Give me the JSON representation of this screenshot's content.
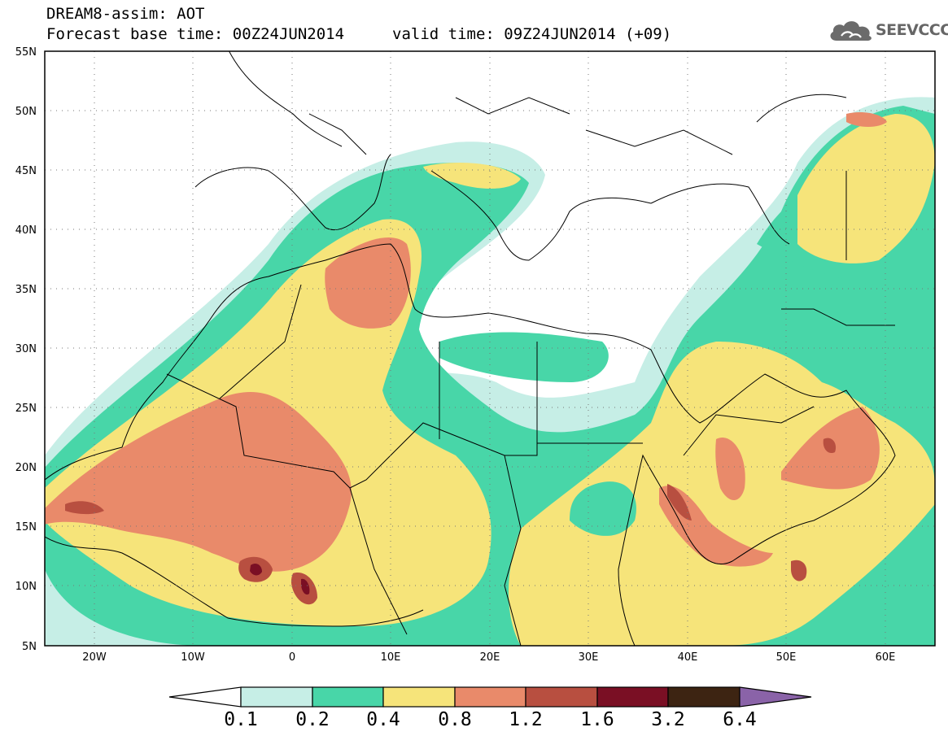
{
  "header": {
    "line1": "DREAM8-assim: AOT",
    "line2": "Forecast base time: 00Z24JUN2014",
    "valid": "valid time: 09Z24JUN2014 (+09)",
    "logo": "SEEVCCC",
    "logo_icon": "cloud-icon"
  },
  "axes": {
    "lat_labels": [
      "55N",
      "50N",
      "45N",
      "40N",
      "35N",
      "30N",
      "25N",
      "20N",
      "15N",
      "10N",
      "5N"
    ],
    "lon_labels": [
      "20W",
      "10W",
      "0",
      "10E",
      "20E",
      "30E",
      "40E",
      "50E",
      "60E"
    ]
  },
  "colorbar": {
    "labels": [
      "0.1",
      "0.2",
      "0.4",
      "0.8",
      "1.2",
      "1.6",
      "3.2",
      "6.4"
    ],
    "colors": [
      "#ffffff",
      "#c6eee6",
      "#48d6a8",
      "#f6e47a",
      "#e98a6a",
      "#b84f40",
      "#7a0f24",
      "#3d2412",
      "#8a63a8"
    ]
  },
  "map_data": {
    "region": "North Africa, Mediterranean, Middle East",
    "extent": {
      "lon_min": -25,
      "lon_max": 65,
      "lat_min": 5,
      "lat_max": 55
    },
    "field": "AOT",
    "levels": [
      0.1,
      0.2,
      0.4,
      0.8,
      1.2,
      1.6,
      3.2,
      6.4
    ]
  }
}
